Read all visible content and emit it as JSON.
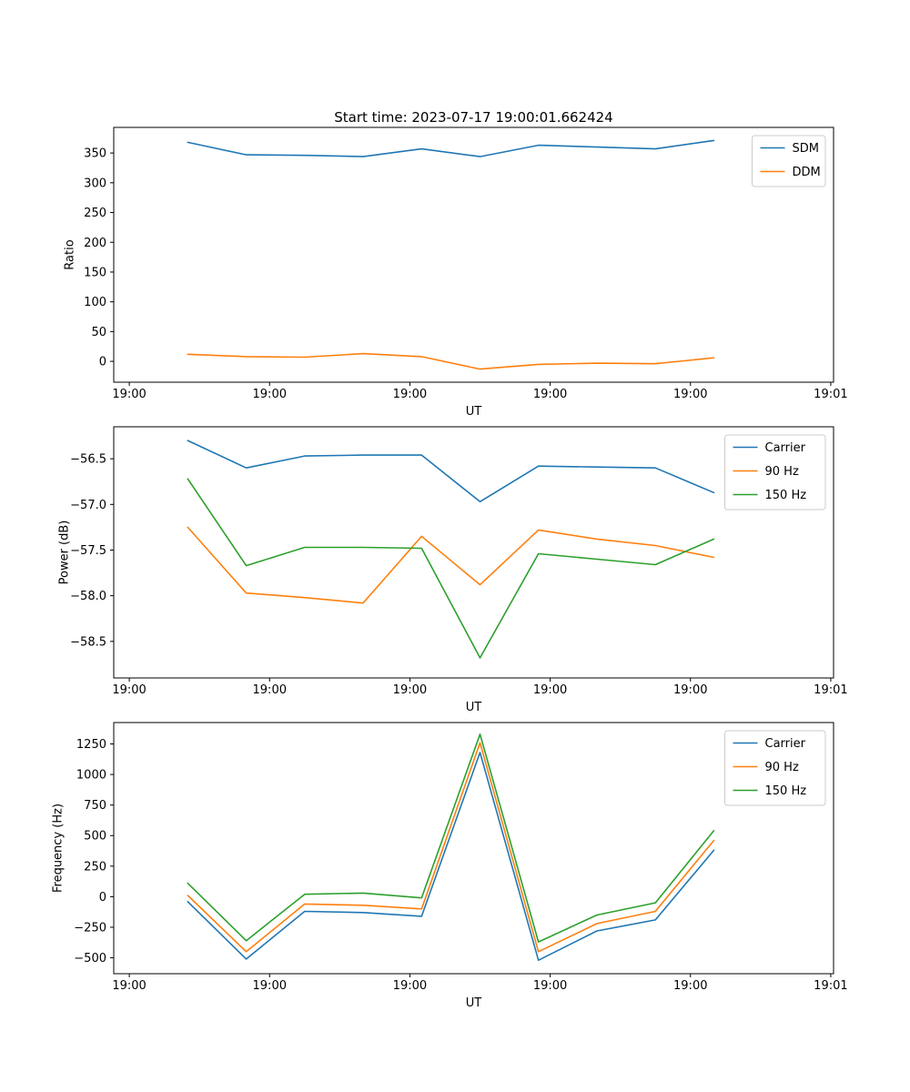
{
  "figure": {
    "title": "Start time: 2023-07-17 19:00:01.662424",
    "background": "#ffffff",
    "palette": {
      "blue": "#1f77b4",
      "orange": "#ff7f0e",
      "green": "#2ca02c"
    }
  },
  "chart_data": [
    {
      "type": "line",
      "title": "Start time: 2023-07-17 19:00:01.662424",
      "xlabel": "UT",
      "ylabel": "Ratio",
      "grid": false,
      "legend_position": "upper-right",
      "x_seconds": [
        5,
        10,
        15,
        20,
        25,
        30,
        35,
        40,
        45,
        50
      ],
      "xlim": [
        -1.33,
        60.24
      ],
      "ylim": [
        -35,
        393
      ],
      "x_tick_seconds": [
        0,
        12,
        24,
        36,
        48,
        60
      ],
      "x_tick_labels": [
        "19:00",
        "19:00",
        "19:00",
        "19:00",
        "19:00",
        "19:01"
      ],
      "y_ticks": [
        0,
        50,
        100,
        150,
        200,
        250,
        300,
        350
      ],
      "y_tick_labels": [
        "0",
        "50",
        "100",
        "150",
        "200",
        "250",
        "300",
        "350"
      ],
      "series": [
        {
          "name": "SDM",
          "color": "#1f77b4",
          "values": [
            368,
            347,
            346,
            344,
            357,
            344,
            363,
            360,
            357,
            371
          ]
        },
        {
          "name": "DDM",
          "color": "#ff7f0e",
          "values": [
            12,
            8,
            7,
            13,
            8,
            -13,
            -5,
            -3,
            -4,
            6
          ]
        }
      ]
    },
    {
      "type": "line",
      "title": "",
      "xlabel": "UT",
      "ylabel": "Power (dB)",
      "grid": false,
      "legend_position": "upper-right",
      "x_seconds": [
        5,
        10,
        15,
        20,
        25,
        30,
        35,
        40,
        45,
        50
      ],
      "xlim": [
        -1.33,
        60.24
      ],
      "ylim": [
        -58.9,
        -56.15
      ],
      "x_tick_seconds": [
        0,
        12,
        24,
        36,
        48,
        60
      ],
      "x_tick_labels": [
        "19:00",
        "19:00",
        "19:00",
        "19:00",
        "19:00",
        "19:01"
      ],
      "y_ticks": [
        -58.5,
        -58.0,
        -57.5,
        -57.0,
        -56.5
      ],
      "y_tick_labels": [
        "−58.5",
        "−58.0",
        "−57.5",
        "−57.0",
        "−56.5"
      ],
      "series": [
        {
          "name": "Carrier",
          "color": "#1f77b4",
          "values": [
            -56.3,
            -56.6,
            -56.47,
            -56.46,
            -56.46,
            -56.97,
            -56.58,
            -56.59,
            -56.6,
            -56.87
          ]
        },
        {
          "name": "90 Hz",
          "color": "#ff7f0e",
          "values": [
            -57.25,
            -57.97,
            -58.02,
            -58.08,
            -57.35,
            -57.88,
            -57.28,
            -57.38,
            -57.45,
            -57.58
          ]
        },
        {
          "name": "150 Hz",
          "color": "#2ca02c",
          "values": [
            -56.72,
            -57.67,
            -57.47,
            -57.47,
            -57.48,
            -58.68,
            -57.54,
            -57.6,
            -57.66,
            -57.38
          ]
        }
      ]
    },
    {
      "type": "line",
      "title": "",
      "xlabel": "UT",
      "ylabel": "Frequency (Hz)",
      "grid": false,
      "legend_position": "upper-right",
      "x_seconds": [
        5,
        10,
        15,
        20,
        25,
        30,
        35,
        40,
        45,
        50
      ],
      "xlim": [
        -1.33,
        60.24
      ],
      "ylim": [
        -630,
        1425
      ],
      "x_tick_seconds": [
        0,
        12,
        24,
        36,
        48,
        60
      ],
      "x_tick_labels": [
        "19:00",
        "19:00",
        "19:00",
        "19:00",
        "19:00",
        "19:01"
      ],
      "y_ticks": [
        -500,
        -250,
        0,
        250,
        500,
        750,
        1000,
        1250
      ],
      "y_tick_labels": [
        "−500",
        "−250",
        "0",
        "250",
        "500",
        "750",
        "1000",
        "1250"
      ],
      "series": [
        {
          "name": "Carrier",
          "color": "#1f77b4",
          "values": [
            -40,
            -510,
            -120,
            -130,
            -160,
            1180,
            -520,
            -280,
            -190,
            380
          ]
        },
        {
          "name": "90 Hz",
          "color": "#ff7f0e",
          "values": [
            10,
            -450,
            -60,
            -70,
            -100,
            1260,
            -450,
            -220,
            -120,
            460
          ]
        },
        {
          "name": "150 Hz",
          "color": "#2ca02c",
          "values": [
            110,
            -360,
            20,
            30,
            -10,
            1330,
            -370,
            -150,
            -50,
            540
          ]
        }
      ]
    }
  ]
}
